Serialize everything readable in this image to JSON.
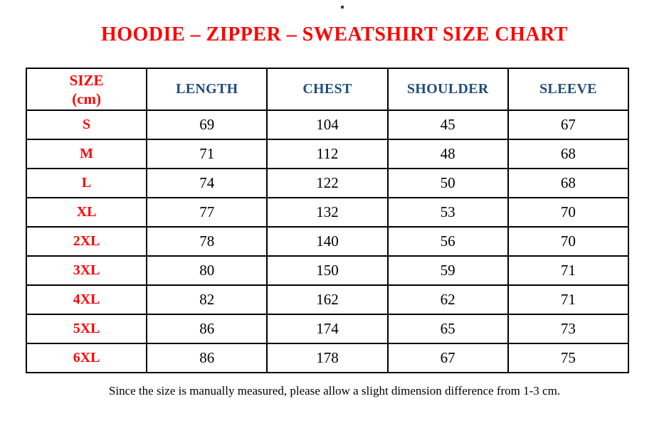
{
  "page": {
    "stray_dot": "."
  },
  "title": {
    "text": "HOODIE – ZIPPER – SWEATSHIRT SIZE CHART",
    "color": "#ff0000"
  },
  "table": {
    "size_header": {
      "line1": "SIZE",
      "line2": "(cm)"
    },
    "columns": [
      "LENGTH",
      "CHEST",
      "SHOULDER",
      "SLEEVE"
    ],
    "rows": [
      {
        "size": "S",
        "length": "69",
        "chest": "104",
        "shoulder": "45",
        "sleeve": "67"
      },
      {
        "size": "M",
        "length": "71",
        "chest": "112",
        "shoulder": "48",
        "sleeve": "68"
      },
      {
        "size": "L",
        "length": "74",
        "chest": "122",
        "shoulder": "50",
        "sleeve": "68"
      },
      {
        "size": "XL",
        "length": "77",
        "chest": "132",
        "shoulder": "53",
        "sleeve": "70"
      },
      {
        "size": "2XL",
        "length": "78",
        "chest": "140",
        "shoulder": "56",
        "sleeve": "70"
      },
      {
        "size": "3XL",
        "length": "80",
        "chest": "150",
        "shoulder": "59",
        "sleeve": "71"
      },
      {
        "size": "4XL",
        "length": "82",
        "chest": "162",
        "shoulder": "62",
        "sleeve": "71"
      },
      {
        "size": "5XL",
        "length": "86",
        "chest": "174",
        "shoulder": "65",
        "sleeve": "73"
      },
      {
        "size": "6XL",
        "length": "86",
        "chest": "178",
        "shoulder": "67",
        "sleeve": "75"
      }
    ]
  },
  "footer": {
    "note": "Since the size is manually measured, please allow a slight dimension difference from 1-3 cm."
  },
  "colors": {
    "accent_red": "#ff0000",
    "header_blue": "#1f4e79",
    "border_black": "#000000"
  }
}
